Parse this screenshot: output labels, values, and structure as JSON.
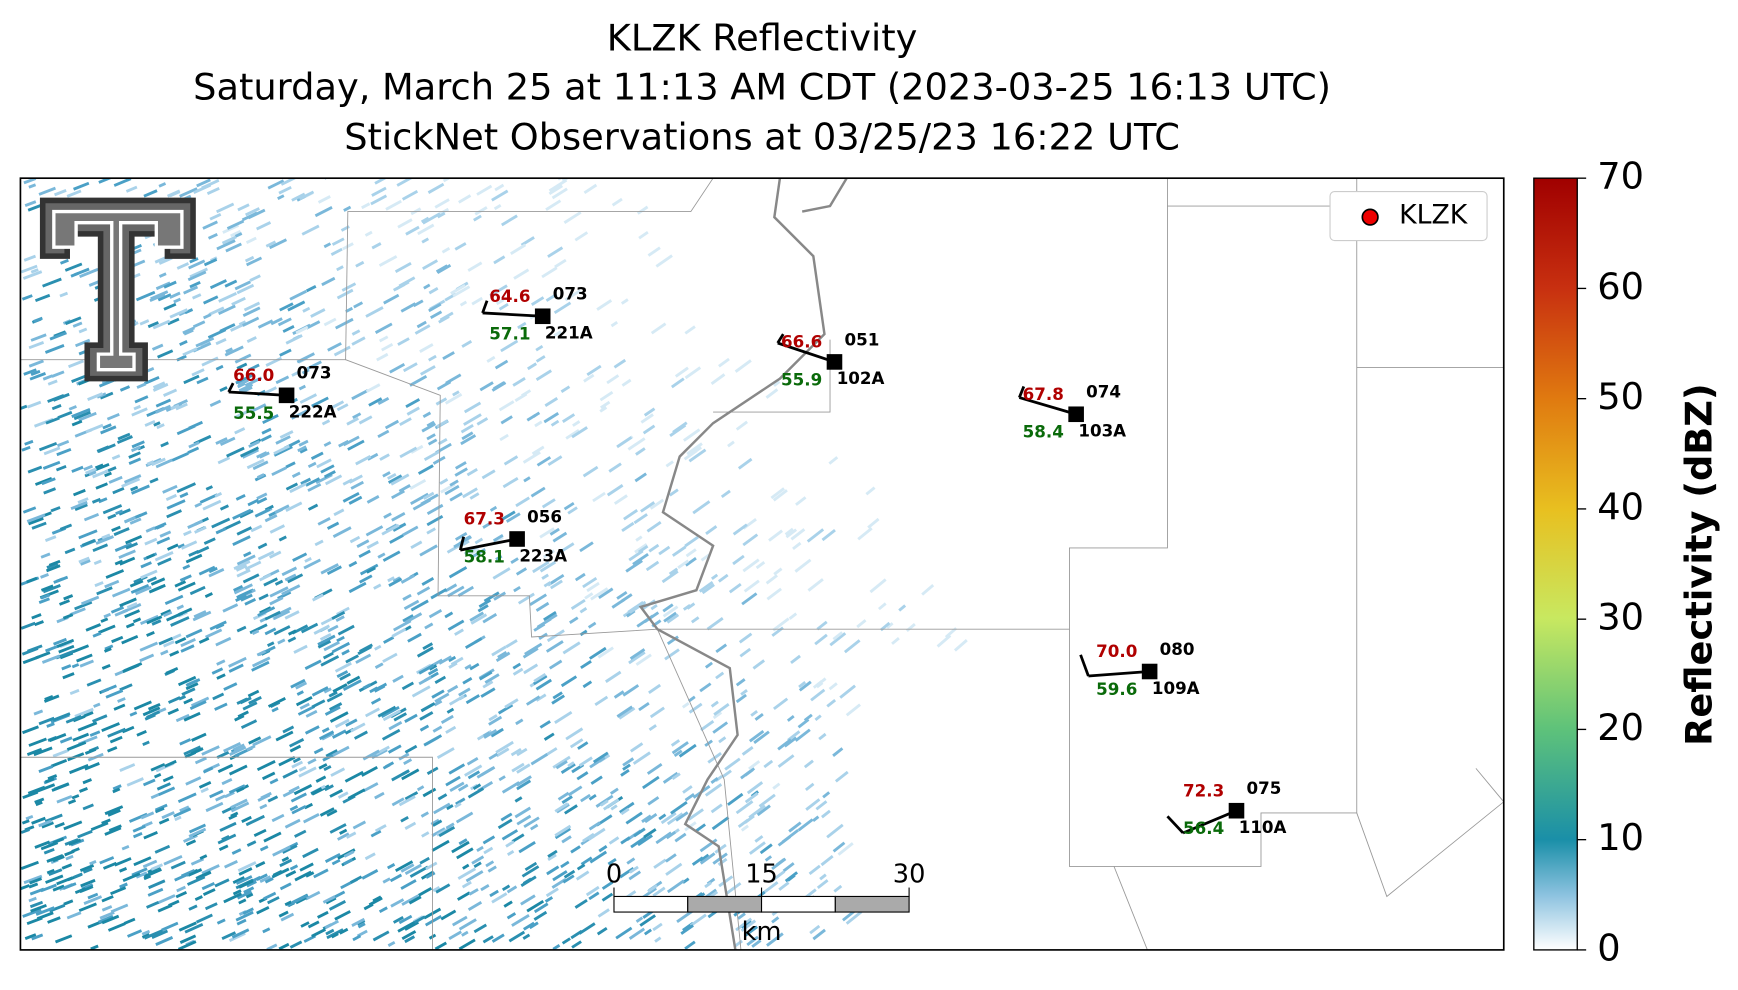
{
  "title": [
    "KLZK Reflectivity",
    "Saturday, March 25 at 11:13 AM CDT (2023-03-25 16:13 UTC)",
    "StickNet Observations at 03/25/23 16:22 UTC"
  ],
  "legend": "KLZK",
  "colorbar": {
    "label": "Reflectivity (dBZ)",
    "lim": [
      0,
      70
    ],
    "ticks": [
      0,
      10,
      20,
      30,
      40,
      50,
      60,
      70
    ]
  },
  "scale_bar": {
    "lim": [
      0,
      30
    ],
    "ticks": [
      0,
      15,
      30
    ],
    "unit": "km"
  },
  "stations": [
    {
      "temperature": "66.0",
      "dewpoint": "55.5",
      "pressure": "073",
      "id": "222A"
    },
    {
      "temperature": "64.6",
      "dewpoint": "57.1",
      "pressure": "073",
      "id": "221A"
    },
    {
      "temperature": "66.6",
      "dewpoint": "55.9",
      "pressure": "051",
      "id": "102A"
    },
    {
      "temperature": "67.8",
      "dewpoint": "58.4",
      "pressure": "074",
      "id": "103A"
    },
    {
      "temperature": "67.3",
      "dewpoint": "58.1",
      "pressure": "056",
      "id": "223A"
    },
    {
      "temperature": "70.0",
      "dewpoint": "59.6",
      "pressure": "080",
      "id": "109A"
    },
    {
      "temperature": "72.3",
      "dewpoint": "56.4",
      "pressure": "075",
      "id": "110A"
    }
  ]
}
